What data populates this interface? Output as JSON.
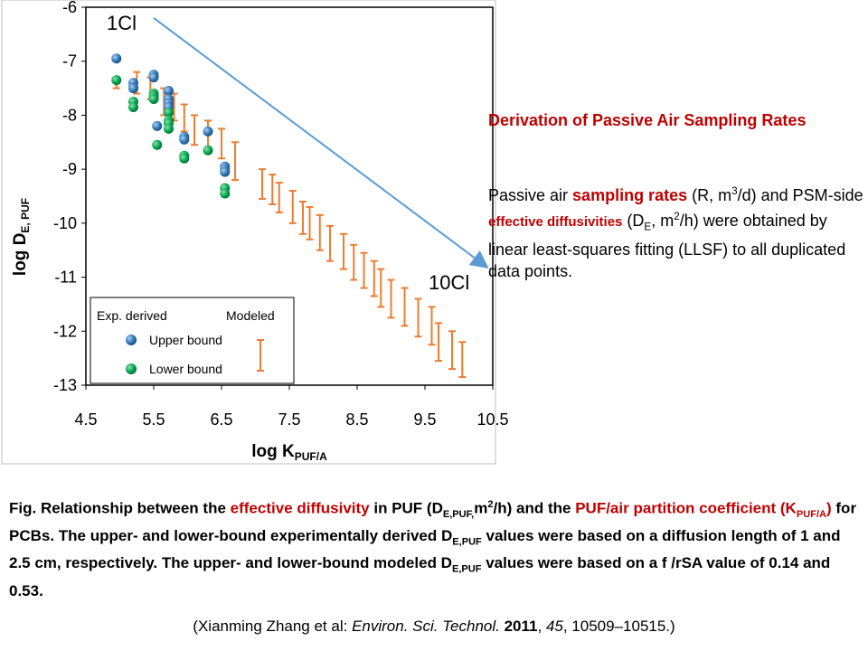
{
  "chart_data": {
    "type": "scatter",
    "xlabel_main": "log K",
    "xlabel_sub": "PUF/A",
    "ylabel_main": "log D",
    "ylabel_sub": "E, PUF",
    "x_ticks": [
      "4.5",
      "5.5",
      "6.5",
      "7.5",
      "8.5",
      "9.5",
      "10.5"
    ],
    "y_ticks": [
      "-6",
      "-7",
      "-8",
      "-9",
      "-10",
      "-11",
      "-12",
      "-13"
    ],
    "xlim": [
      4.5,
      10.5
    ],
    "ylim": [
      -13,
      -6
    ],
    "grid": false,
    "annotation_start": "1Cl",
    "annotation_end": "10Cl",
    "arrow": {
      "from": [
        5.5,
        -6.2
      ],
      "to": [
        10.4,
        -10.8
      ]
    },
    "legend": {
      "position": "bottom-left",
      "col1_header": "Exp. derived",
      "col2_header": "Modeled",
      "upper_label": "Upper bound",
      "lower_label": "Lower bound"
    },
    "series": [
      {
        "name": "Upper bound",
        "marker": "blue-circle",
        "color": "#2e75b6",
        "points": [
          [
            4.95,
            -6.95
          ],
          [
            5.2,
            -7.4
          ],
          [
            5.2,
            -7.48
          ],
          [
            5.2,
            -7.5
          ],
          [
            5.5,
            -7.25
          ],
          [
            5.5,
            -7.3
          ],
          [
            5.5,
            -7.65
          ],
          [
            5.55,
            -8.2
          ],
          [
            5.72,
            -7.55
          ],
          [
            5.72,
            -7.7
          ],
          [
            5.72,
            -7.78
          ],
          [
            5.72,
            -7.85
          ],
          [
            5.95,
            -8.4
          ],
          [
            5.95,
            -8.45
          ],
          [
            6.3,
            -8.3
          ],
          [
            6.55,
            -8.95
          ],
          [
            6.55,
            -9.0
          ],
          [
            6.55,
            -9.05
          ]
        ]
      },
      {
        "name": "Lower bound",
        "marker": "green-circle",
        "color": "#00a651",
        "points": [
          [
            4.95,
            -7.35
          ],
          [
            5.2,
            -7.75
          ],
          [
            5.2,
            -7.85
          ],
          [
            5.5,
            -7.6
          ],
          [
            5.5,
            -7.65
          ],
          [
            5.5,
            -7.7
          ],
          [
            5.55,
            -8.55
          ],
          [
            5.72,
            -7.95
          ],
          [
            5.72,
            -8.1
          ],
          [
            5.72,
            -8.15
          ],
          [
            5.72,
            -8.25
          ],
          [
            5.95,
            -8.75
          ],
          [
            5.95,
            -8.8
          ],
          [
            6.3,
            -8.65
          ],
          [
            6.55,
            -9.35
          ],
          [
            6.55,
            -9.45
          ]
        ]
      },
      {
        "name": "Modeled",
        "marker": "orange-errorbar",
        "color": "#ed7d31",
        "ranges": [
          [
            4.95,
            -7.3,
            -7.5
          ],
          [
            5.25,
            -7.2,
            -7.6
          ],
          [
            5.45,
            -7.3,
            -7.7
          ],
          [
            5.65,
            -7.5,
            -8.0
          ],
          [
            5.8,
            -7.6,
            -8.1
          ],
          [
            5.95,
            -7.8,
            -8.3
          ],
          [
            6.1,
            -8.0,
            -8.55
          ],
          [
            6.3,
            -8.1,
            -8.65
          ],
          [
            6.5,
            -8.25,
            -8.8
          ],
          [
            6.7,
            -8.5,
            -9.2
          ],
          [
            7.1,
            -9.0,
            -9.55
          ],
          [
            7.25,
            -9.1,
            -9.65
          ],
          [
            7.35,
            -9.25,
            -9.8
          ],
          [
            7.55,
            -9.4,
            -10.0
          ],
          [
            7.7,
            -9.6,
            -10.2
          ],
          [
            7.8,
            -9.7,
            -10.3
          ],
          [
            7.95,
            -9.85,
            -10.5
          ],
          [
            8.1,
            -10.05,
            -10.7
          ],
          [
            8.3,
            -10.2,
            -10.85
          ],
          [
            8.45,
            -10.4,
            -11.05
          ],
          [
            8.6,
            -10.55,
            -11.2
          ],
          [
            8.75,
            -10.7,
            -11.35
          ],
          [
            8.85,
            -10.85,
            -11.55
          ],
          [
            9.0,
            -11.05,
            -11.75
          ],
          [
            9.2,
            -11.2,
            -11.9
          ],
          [
            9.4,
            -11.4,
            -12.1
          ],
          [
            9.6,
            -11.55,
            -12.25
          ],
          [
            9.7,
            -11.85,
            -12.55
          ],
          [
            9.9,
            -12.0,
            -12.7
          ],
          [
            10.05,
            -12.2,
            -12.85
          ]
        ]
      }
    ]
  },
  "side_text": {
    "title": "Derivation of Passive Air Sampling Rates",
    "p1": "Passive air ",
    "p_bold1": "sampling rates",
    "p2": " (R, m",
    "p2_sup": "3",
    "p3": "/d) and PSM-side ",
    "p_bold2": "effective diffusivities",
    "p4": " (D",
    "p4_sub": "E",
    "p5": ", m",
    "p5_sup": "2",
    "p6": "/h) were obtained by linear least-squares fitting (LLSF) to all duplicated data points."
  },
  "caption": {
    "t1": "Fig. Relationship between the ",
    "r1": "effective diffusivity",
    "t2": " in PUF (D",
    "s1": "E,PUF,",
    "t3": "m",
    "sup1": "2",
    "t4": "/h) and the ",
    "r2": "PUF/air partition coefficient (K",
    "s2": "PUF/A",
    "r3": ")",
    "t5": " for PCBs. The upper- and lower-bound experimentally derived D",
    "s3": "E,PUF",
    "t6": " values were based on a diffusion length of 1 and 2.5 cm, respectively. The upper- and lower-bound modeled D",
    "s4": "E,PUF",
    "t7": " values were based on a f /rSA value of 0.14 and 0.53."
  },
  "citation": {
    "c1": "(Xianming Zhang et al: ",
    "c2": "Environ. Sci. Technol.",
    "c3": " ",
    "c4": "2011",
    "c5": ", ",
    "c6": "45",
    "c7": ", 10509–10515.)"
  }
}
